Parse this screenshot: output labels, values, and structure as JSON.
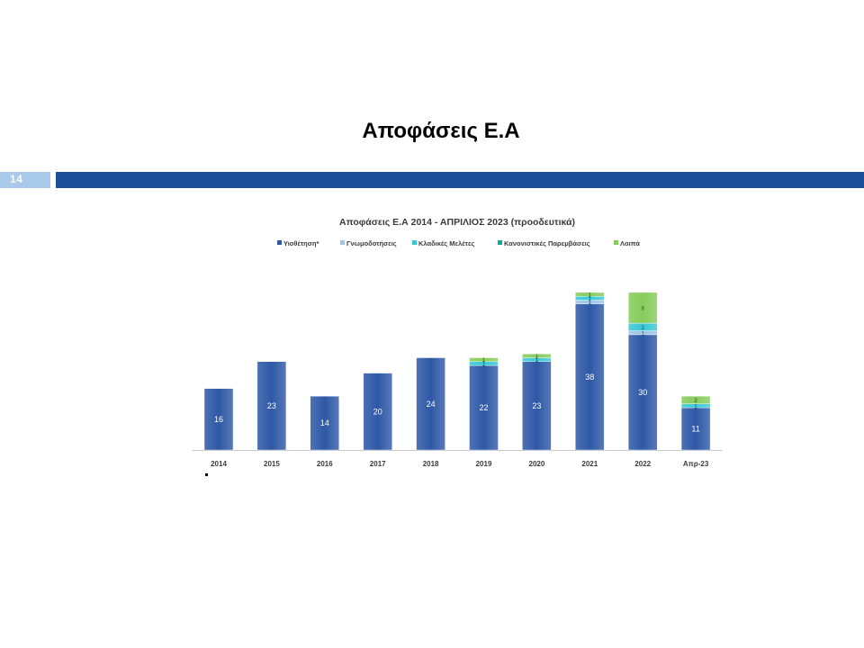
{
  "slide": {
    "title": "Αποφάσεις Ε.Α",
    "number": "14"
  },
  "colors": {
    "band": "#1b4f97",
    "number_box": "#a9c9ea",
    "series": [
      "#2e58a6",
      "#9fc3e6",
      "#39c7d6",
      "#13a89e",
      "#86cc5a"
    ]
  },
  "chart_data": {
    "type": "bar",
    "stacked": true,
    "title": "Αποφάσεις Ε.Α 2014 - ΑΠΡΙΛΙΟΣ 2023 (προοδευτικά)",
    "categories": [
      "2014",
      "2015",
      "2016",
      "2017",
      "2018",
      "2019",
      "2020",
      "2021",
      "2022",
      "Απρ-23"
    ],
    "series": [
      {
        "name": "Υιοθέτηση*",
        "values": [
          16,
          23,
          14,
          20,
          24,
          22,
          23,
          38,
          30,
          11
        ]
      },
      {
        "name": "Γνωμοδοτήσεις",
        "values": [
          0,
          0,
          0,
          0,
          0,
          0,
          0,
          1,
          1,
          0
        ]
      },
      {
        "name": "Κλαδικές Μελέτες",
        "values": [
          0,
          0,
          0,
          0,
          0,
          1,
          1,
          1,
          2,
          1
        ]
      },
      {
        "name": "Κανονιστικές Παρεμβάσεις",
        "values": [
          0,
          0,
          0,
          0,
          0,
          0,
          0,
          0,
          0,
          0
        ]
      },
      {
        "name": "Λοιπά",
        "values": [
          0,
          0,
          0,
          0,
          0,
          1,
          1,
          1,
          8,
          2
        ]
      }
    ],
    "ylim": [
      0,
      42
    ],
    "grid": false,
    "legend": "top"
  }
}
